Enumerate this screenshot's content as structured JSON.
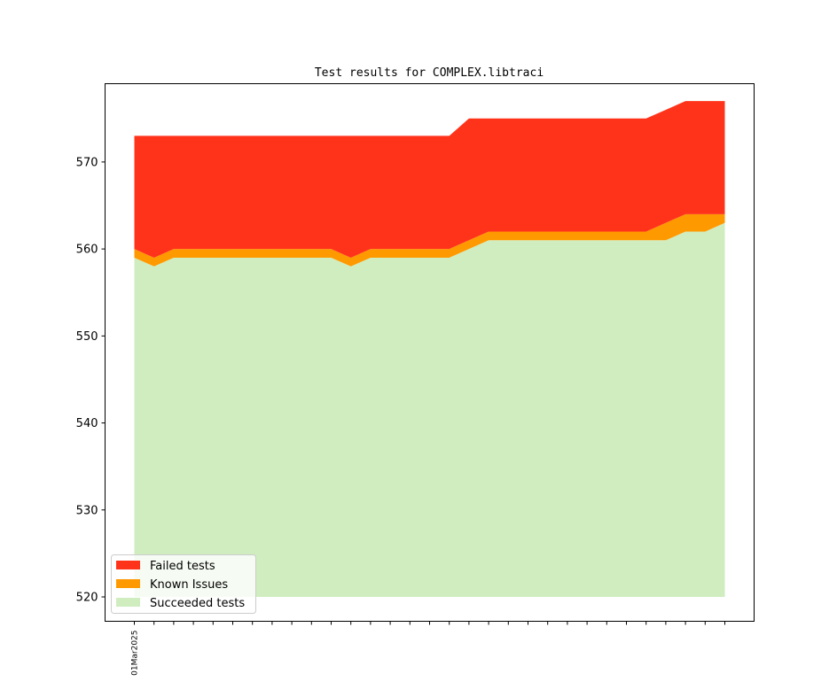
{
  "chart_data": {
    "type": "area",
    "title": "Test results for COMPLEX.libtraci",
    "xlabel": "",
    "ylabel": "",
    "ylim": [
      517.2,
      579.0
    ],
    "yticks": [
      520,
      530,
      540,
      550,
      560,
      570
    ],
    "x_tick_labels": [
      "01Mar2025",
      "",
      "",
      "",
      "",
      "",
      "",
      "",
      "",
      "",
      "",
      "",
      "",
      "",
      "",
      "",
      "",
      "",
      "",
      "",
      "",
      "",
      "",
      "",
      "",
      "",
      "",
      "",
      "",
      "",
      ""
    ],
    "legend_position": "lower left",
    "grid": false,
    "baseline": 520,
    "series": [
      {
        "name": "Succeeded tests",
        "color": "#d0edc0",
        "values": [
          559,
          558,
          559,
          559,
          559,
          559,
          559,
          559,
          559,
          559,
          559,
          558,
          559,
          559,
          559,
          559,
          559,
          560,
          561,
          561,
          561,
          561,
          561,
          561,
          561,
          561,
          561,
          561,
          562,
          562,
          563
        ]
      },
      {
        "name": "Known Issues",
        "color": "#ff9900",
        "values": [
          1,
          1,
          1,
          1,
          1,
          1,
          1,
          1,
          1,
          1,
          1,
          1,
          1,
          1,
          1,
          1,
          1,
          1,
          1,
          1,
          1,
          1,
          1,
          1,
          1,
          1,
          1,
          2,
          2,
          2,
          1
        ]
      },
      {
        "name": "Failed tests",
        "color": "#ff331a",
        "values": [
          13,
          14,
          13,
          13,
          13,
          13,
          13,
          13,
          13,
          13,
          13,
          14,
          13,
          13,
          13,
          13,
          13,
          14,
          13,
          13,
          13,
          13,
          13,
          13,
          13,
          13,
          13,
          13,
          13,
          13,
          13
        ]
      }
    ]
  }
}
